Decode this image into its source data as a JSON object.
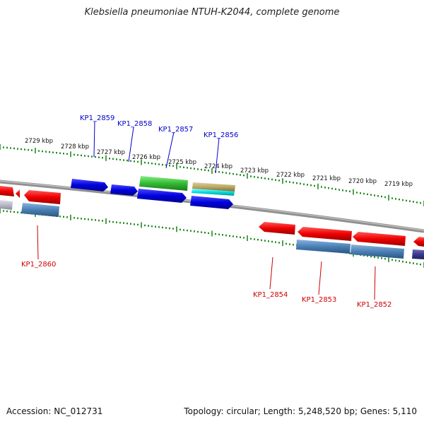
{
  "title": "Klebsiella pneumoniae NTUH-K2044, complete genome",
  "footer": {
    "accession": "Accession: NC_012731",
    "summary": "Topology: circular; Length: 5,248,520 bp; Genes: 5,110"
  },
  "kbp_labels": [
    "2729 kbp",
    "2728 kbp",
    "2727 kbp",
    "2726 kbp",
    "2725 kbp",
    "2724 kbp",
    "2723 kbp",
    "2722 kbp",
    "2721 kbp",
    "2720 kbp",
    "2719 kbp"
  ],
  "gene_labels": {
    "forward": [
      "KP1_2859",
      "KP1_2858",
      "KP1_2857",
      "KP1_2856"
    ],
    "reverse": [
      "KP1_2860",
      "KP1_2854",
      "KP1_2853",
      "KP1_2852"
    ]
  },
  "colors": {
    "forward_label": "#0000cc",
    "reverse_label": "#cc0000",
    "tick": "#228b22",
    "backbone": "#808080",
    "blue_gene": "#0000dd",
    "red_gene": "#ee0000",
    "green_gene": "#33bb33",
    "cyan_gene": "#00dddd",
    "tan_gene": "#bba866",
    "steel_gene": "#4a7fb5",
    "grey_gene": "#b8b8c8",
    "purple_gene": "#3a3a8a"
  }
}
